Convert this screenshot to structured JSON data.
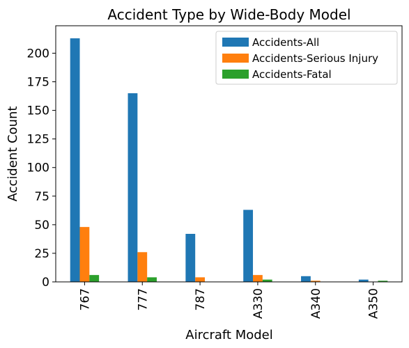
{
  "chart_data": {
    "type": "bar",
    "title": "Accident Type by Wide-Body Model",
    "xlabel": "Aircraft Model",
    "ylabel": "Accident Count",
    "categories": [
      "767",
      "777",
      "787",
      "A330",
      "A340",
      "A350"
    ],
    "series": [
      {
        "name": "Accidents-All",
        "color": "#1f77b4",
        "values": [
          213,
          165,
          42,
          63,
          5,
          2
        ]
      },
      {
        "name": "Accidents-Serious Injury",
        "color": "#ff7f0e",
        "values": [
          48,
          26,
          4,
          6,
          1,
          0
        ]
      },
      {
        "name": "Accidents-Fatal",
        "color": "#2ca02c",
        "values": [
          6,
          4,
          0,
          2,
          0,
          1
        ]
      }
    ],
    "ylim": [
      0,
      224
    ],
    "yticks": [
      0,
      25,
      50,
      75,
      100,
      125,
      150,
      175,
      200
    ],
    "grid": false,
    "legend_position": "top-right"
  }
}
